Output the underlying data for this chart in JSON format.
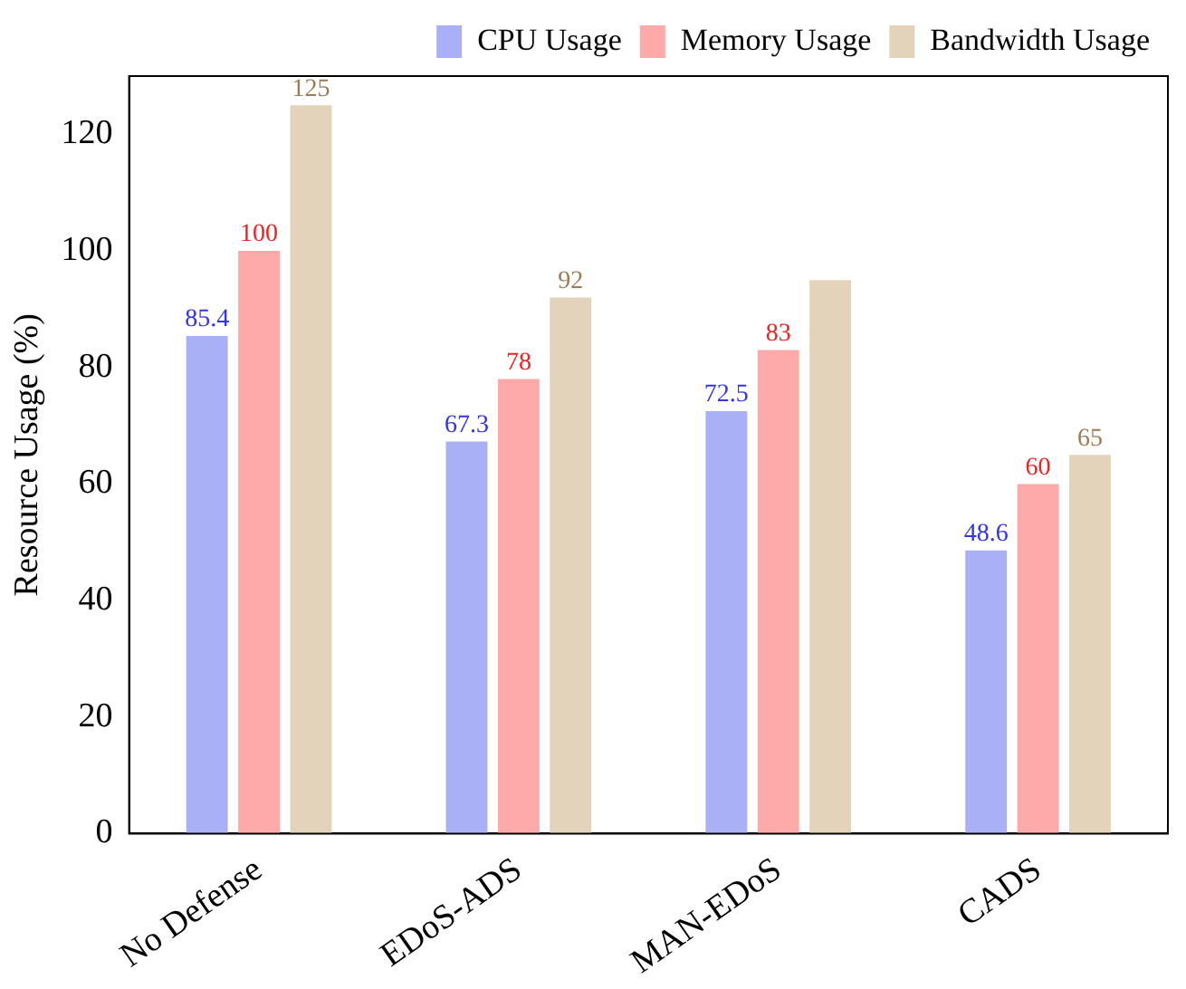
{
  "chart_data": {
    "type": "bar",
    "ylabel": "Resource Usage (%)",
    "categories": [
      "No Defense",
      "EDoS-ADS",
      "MAN-EDoS",
      "CADS"
    ],
    "series": [
      {
        "name": "CPU Usage",
        "color": "#aab0f5",
        "values": [
          85.4,
          67.3,
          72.5,
          48.6
        ],
        "value_labels": [
          "85.4",
          "67.3",
          "72.5",
          "48.6"
        ]
      },
      {
        "name": "Memory Usage",
        "color": "#ffaaaa",
        "values": [
          100,
          78,
          83,
          60
        ],
        "value_labels": [
          "100",
          "78",
          "83",
          "60"
        ]
      },
      {
        "name": "Bandwidth Usage",
        "color": "#e3d3bb",
        "values": [
          125,
          92,
          95,
          65
        ],
        "value_labels": [
          "125",
          "92",
          null,
          "65"
        ]
      }
    ],
    "ylim": [
      0,
      130
    ],
    "yticks": [
      0,
      20,
      40,
      60,
      80,
      100,
      120
    ],
    "grid": false,
    "legend": "top right"
  }
}
